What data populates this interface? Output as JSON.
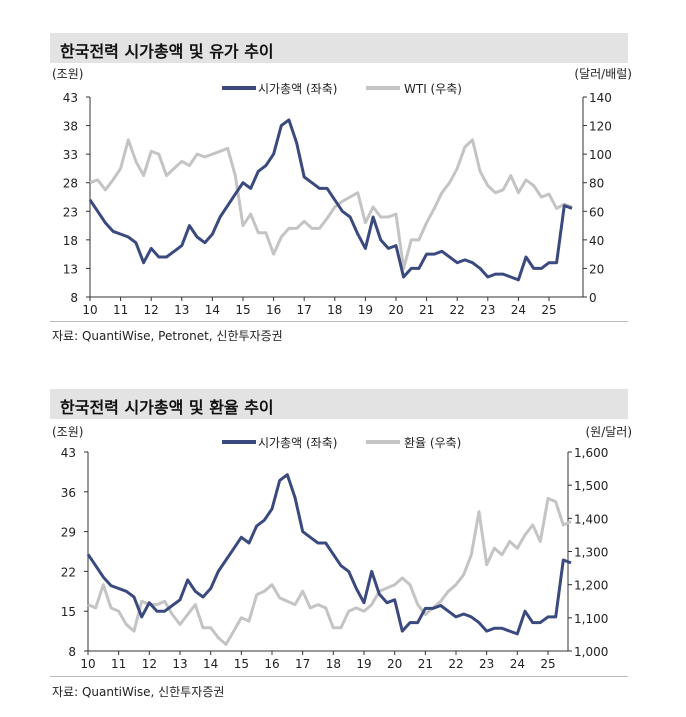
{
  "chart_data": [
    {
      "type": "line",
      "title": "한국전력 시가총액 및 유가 추이",
      "left_unit": "(조원)",
      "right_unit": "(달러/배럴)",
      "legend": [
        "시가총액 (좌축)",
        "WTI (우축)"
      ],
      "x_ticks": [
        "10",
        "11",
        "12",
        "13",
        "14",
        "15",
        "16",
        "17",
        "18",
        "19",
        "20",
        "21",
        "22",
        "23",
        "24",
        "25"
      ],
      "y_left_ticks": [
        "43",
        "38",
        "33",
        "28",
        "23",
        "18",
        "13",
        "8"
      ],
      "y_left_lim": [
        8,
        43
      ],
      "y_right_ticks": [
        "140",
        "120",
        "100",
        "80",
        "60",
        "40",
        "20",
        "0"
      ],
      "y_right_lim": [
        0,
        140
      ],
      "source": "자료: QuantiWise, Petronet, 신한투자증권",
      "colors": {
        "left": "#3b4a7e",
        "right": "#c4c4c4"
      },
      "series": [
        {
          "name": "시가총액 (좌축)",
          "axis": "left",
          "x": [
            2010,
            2010.25,
            2010.5,
            2010.75,
            2011,
            2011.25,
            2011.5,
            2011.75,
            2012,
            2012.25,
            2012.5,
            2012.75,
            2013,
            2013.25,
            2013.5,
            2013.75,
            2014,
            2014.25,
            2014.5,
            2014.75,
            2015,
            2015.25,
            2015.5,
            2015.75,
            2016,
            2016.25,
            2016.5,
            2016.75,
            2017,
            2017.25,
            2017.5,
            2017.75,
            2018,
            2018.25,
            2018.5,
            2018.75,
            2019,
            2019.25,
            2019.5,
            2019.75,
            2020,
            2020.25,
            2020.5,
            2020.75,
            2021,
            2021.25,
            2021.5,
            2021.75,
            2022,
            2022.25,
            2022.5,
            2022.75,
            2023,
            2023.25,
            2023.5,
            2023.75,
            2024,
            2024.25,
            2024.5,
            2024.75,
            2025,
            2025.25,
            2025.5,
            2025.75
          ],
          "values": [
            25,
            23,
            21,
            19.5,
            19,
            18.5,
            17.5,
            14,
            16.5,
            15,
            15,
            16,
            17,
            20.5,
            18.5,
            17.5,
            19,
            22,
            24,
            26,
            28,
            27,
            30,
            31,
            33,
            38,
            39,
            35,
            29,
            28,
            27,
            27,
            25,
            23,
            22,
            19,
            16.5,
            22,
            18,
            16.5,
            17,
            11.5,
            13,
            13,
            15.5,
            15.5,
            16,
            15,
            14,
            14.5,
            14,
            13,
            11.5,
            12,
            12,
            11.5,
            11,
            15,
            13,
            13,
            14,
            14,
            24,
            23.5
          ]
        },
        {
          "name": "WTI (우축)",
          "axis": "right",
          "x": [
            2010,
            2010.25,
            2010.5,
            2010.75,
            2011,
            2011.25,
            2011.5,
            2011.75,
            2012,
            2012.25,
            2012.5,
            2012.75,
            2013,
            2013.25,
            2013.5,
            2013.75,
            2014,
            2014.25,
            2014.5,
            2014.75,
            2015,
            2015.25,
            2015.5,
            2015.75,
            2016,
            2016.25,
            2016.5,
            2016.75,
            2017,
            2017.25,
            2017.5,
            2017.75,
            2018,
            2018.25,
            2018.5,
            2018.75,
            2019,
            2019.25,
            2019.5,
            2019.75,
            2020,
            2020.25,
            2020.5,
            2020.75,
            2021,
            2021.25,
            2021.5,
            2021.75,
            2022,
            2022.25,
            2022.5,
            2022.75,
            2023,
            2023.25,
            2023.5,
            2023.75,
            2024,
            2024.25,
            2024.5,
            2024.75,
            2025,
            2025.25,
            2025.5,
            2025.75
          ],
          "values": [
            80,
            82,
            75,
            82,
            90,
            110,
            95,
            85,
            102,
            100,
            85,
            90,
            95,
            92,
            100,
            98,
            100,
            102,
            104,
            85,
            50,
            58,
            45,
            45,
            30,
            42,
            48,
            48,
            53,
            48,
            48,
            55,
            63,
            67,
            70,
            73,
            52,
            63,
            56,
            56,
            58,
            20,
            40,
            40,
            52,
            62,
            73,
            80,
            90,
            105,
            110,
            88,
            78,
            73,
            75,
            85,
            73,
            82,
            78,
            70,
            72,
            62,
            65,
            63
          ]
        }
      ]
    },
    {
      "type": "line",
      "title": "한국전력 시가총액 및 환율 추이",
      "left_unit": "(조원)",
      "right_unit": "(원/달러)",
      "legend": [
        "시가총액 (좌축)",
        "환율 (우축)"
      ],
      "x_ticks": [
        "10",
        "11",
        "12",
        "13",
        "14",
        "15",
        "16",
        "17",
        "18",
        "19",
        "20",
        "21",
        "22",
        "23",
        "24",
        "25"
      ],
      "y_left_ticks": [
        "43",
        "36",
        "29",
        "22",
        "15",
        "8"
      ],
      "y_left_lim": [
        8,
        43
      ],
      "y_right_ticks": [
        "1,600",
        "1,500",
        "1,400",
        "1,300",
        "1,200",
        "1,100",
        "1,000"
      ],
      "y_right_lim": [
        1000,
        1600
      ],
      "source": "자료: QuantiWise, 신한투자증권",
      "colors": {
        "left": "#3b4a7e",
        "right": "#c4c4c4"
      },
      "series": [
        {
          "name": "시가총액 (좌축)",
          "axis": "left",
          "x": [
            2010,
            2010.25,
            2010.5,
            2010.75,
            2011,
            2011.25,
            2011.5,
            2011.75,
            2012,
            2012.25,
            2012.5,
            2012.75,
            2013,
            2013.25,
            2013.5,
            2013.75,
            2014,
            2014.25,
            2014.5,
            2014.75,
            2015,
            2015.25,
            2015.5,
            2015.75,
            2016,
            2016.25,
            2016.5,
            2016.75,
            2017,
            2017.25,
            2017.5,
            2017.75,
            2018,
            2018.25,
            2018.5,
            2018.75,
            2019,
            2019.25,
            2019.5,
            2019.75,
            2020,
            2020.25,
            2020.5,
            2020.75,
            2021,
            2021.25,
            2021.5,
            2021.75,
            2022,
            2022.25,
            2022.5,
            2022.75,
            2023,
            2023.25,
            2023.5,
            2023.75,
            2024,
            2024.25,
            2024.5,
            2024.75,
            2025,
            2025.25,
            2025.5,
            2025.75
          ],
          "values": [
            25,
            23,
            21,
            19.5,
            19,
            18.5,
            17.5,
            14,
            16.5,
            15,
            15,
            16,
            17,
            20.5,
            18.5,
            17.5,
            19,
            22,
            24,
            26,
            28,
            27,
            30,
            31,
            33,
            38,
            39,
            35,
            29,
            28,
            27,
            27,
            25,
            23,
            22,
            19,
            16.5,
            22,
            18,
            16.5,
            17,
            11.5,
            13,
            13,
            15.5,
            15.5,
            16,
            15,
            14,
            14.5,
            14,
            13,
            11.5,
            12,
            12,
            11.5,
            11,
            15,
            13,
            13,
            14,
            14,
            24,
            23.5
          ]
        },
        {
          "name": "환율 (우축)",
          "axis": "right",
          "x": [
            2010,
            2010.25,
            2010.5,
            2010.75,
            2011,
            2011.25,
            2011.5,
            2011.75,
            2012,
            2012.25,
            2012.5,
            2012.75,
            2013,
            2013.25,
            2013.5,
            2013.75,
            2014,
            2014.25,
            2014.5,
            2014.75,
            2015,
            2015.25,
            2015.5,
            2015.75,
            2016,
            2016.25,
            2016.5,
            2016.75,
            2017,
            2017.25,
            2017.5,
            2017.75,
            2018,
            2018.25,
            2018.5,
            2018.75,
            2019,
            2019.25,
            2019.5,
            2019.75,
            2020,
            2020.25,
            2020.5,
            2020.75,
            2021,
            2021.25,
            2021.5,
            2021.75,
            2022,
            2022.25,
            2022.5,
            2022.75,
            2023,
            2023.25,
            2023.5,
            2023.75,
            2024,
            2024.25,
            2024.5,
            2024.75,
            2025,
            2025.25,
            2025.5,
            2025.75
          ],
          "values": [
            1140,
            1130,
            1200,
            1130,
            1120,
            1080,
            1060,
            1150,
            1140,
            1140,
            1150,
            1110,
            1080,
            1110,
            1140,
            1070,
            1070,
            1040,
            1020,
            1060,
            1100,
            1090,
            1170,
            1180,
            1200,
            1160,
            1150,
            1140,
            1180,
            1130,
            1140,
            1130,
            1070,
            1070,
            1120,
            1130,
            1120,
            1140,
            1180,
            1190,
            1200,
            1220,
            1200,
            1140,
            1110,
            1130,
            1150,
            1180,
            1200,
            1230,
            1290,
            1420,
            1260,
            1310,
            1290,
            1330,
            1310,
            1350,
            1380,
            1330,
            1460,
            1450,
            1380,
            1390
          ]
        }
      ]
    }
  ]
}
